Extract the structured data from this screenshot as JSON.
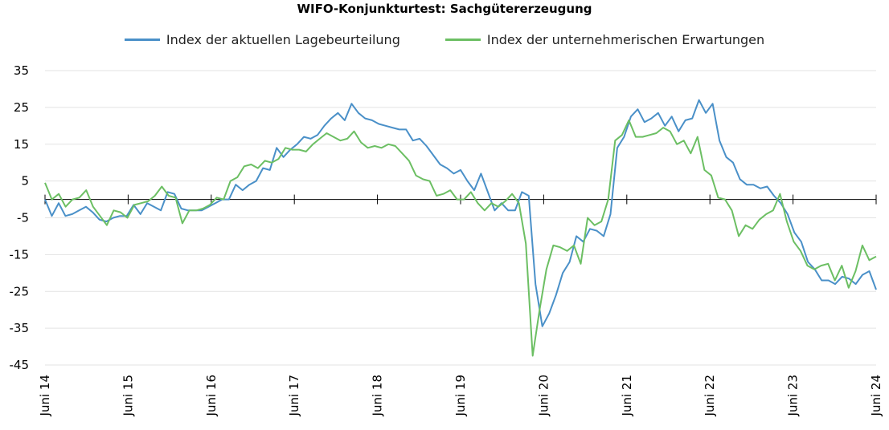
{
  "chart_data": {
    "type": "line",
    "title": "WIFO-Konjunkturtest: Sachgütererzeugung",
    "xlabel": "",
    "ylabel": "",
    "ylim": [
      -45,
      35
    ],
    "yticks": [
      "35",
      "25",
      "15",
      "5",
      "-5",
      "-15",
      "-25",
      "-35",
      "-45"
    ],
    "x_tick_labels": [
      "Juni 14",
      "Juni 15",
      "Juni 16",
      "Juni 17",
      "Juni 18",
      "Juni 19",
      "Juni 20",
      "Juni 21",
      "Juni 22",
      "Juni 23",
      "Juni 24"
    ],
    "x_start": "2014-06",
    "x_end": "2024-06",
    "grid": "horizontal",
    "legend_position": "top",
    "series": [
      {
        "name": "Index der aktuellen Lagebeurteilung",
        "color": "#4a90c8",
        "values": [
          0,
          -4.5,
          -1,
          -4.5,
          -4,
          -3,
          -2,
          -3.5,
          -5.5,
          -6,
          -5,
          -4.5,
          -4.5,
          -1.5,
          -4,
          -1,
          -2,
          -3,
          2,
          1.5,
          -2.5,
          -3,
          -3,
          -3,
          -2,
          -1,
          0,
          0,
          4,
          2.5,
          4,
          5,
          8.5,
          8,
          14,
          11.5,
          13.5,
          15,
          17,
          16.5,
          17.5,
          20,
          22,
          23.5,
          21.5,
          26,
          23.5,
          22,
          21.5,
          20.5,
          20,
          19.5,
          19,
          19,
          16,
          16.5,
          14.5,
          12,
          9.5,
          8.5,
          7,
          8,
          5,
          2.5,
          7,
          2,
          -3,
          -1,
          -3,
          -3,
          2,
          1,
          -23,
          -34.5,
          -31,
          -26,
          -20,
          -17,
          -10,
          -11.5,
          -8,
          -8.5,
          -10,
          -4,
          14,
          17,
          22.5,
          24.5,
          21,
          22,
          23.5,
          20,
          22.5,
          18.5,
          21.5,
          22,
          27,
          23.5,
          26,
          16,
          11.5,
          10,
          5.5,
          4,
          4,
          3,
          3.5,
          1,
          -1,
          -4,
          -9,
          -11.5,
          -17,
          -19,
          -22,
          -22,
          -23,
          -21,
          -21.5,
          -23,
          -20.5,
          -19.5,
          -24.5
        ]
      },
      {
        "name": "Index der unternehmerischen Erwartungen",
        "color": "#6cbf63",
        "values": [
          4.5,
          0,
          1.5,
          -2,
          0,
          0.5,
          2.5,
          -2,
          -4.5,
          -7,
          -3,
          -3.5,
          -5,
          -1.5,
          -1,
          -0.5,
          1,
          3.5,
          1,
          0.5,
          -6.5,
          -3,
          -3,
          -2.5,
          -1.5,
          0.5,
          0,
          5,
          6,
          9,
          9.5,
          8.5,
          10.5,
          10,
          11,
          14,
          13.5,
          13.5,
          13,
          15,
          16.5,
          18,
          17,
          16,
          16.5,
          18.5,
          15.5,
          14,
          14.5,
          14,
          15,
          14.5,
          12.5,
          10.5,
          6.5,
          5.5,
          5,
          1,
          1.5,
          2.5,
          0,
          0,
          2,
          -1,
          -3,
          -1,
          -2,
          -0.5,
          1.5,
          -1,
          -12,
          -42.5,
          -30,
          -19,
          -12.5,
          -13,
          -14,
          -12.5,
          -17.5,
          -5,
          -7,
          -6,
          0,
          16,
          17.5,
          21.5,
          17,
          17,
          17.5,
          18,
          19.5,
          18.5,
          15,
          16,
          12.5,
          17,
          8,
          6.5,
          0.5,
          0,
          -3,
          -10,
          -7,
          -8,
          -5.5,
          -4,
          -3,
          1.5,
          -6,
          -11.5,
          -14,
          -18,
          -19,
          -18,
          -17.5,
          -22,
          -18,
          -24,
          -19.5,
          -12.5,
          -16.5,
          -15.5
        ]
      }
    ]
  }
}
